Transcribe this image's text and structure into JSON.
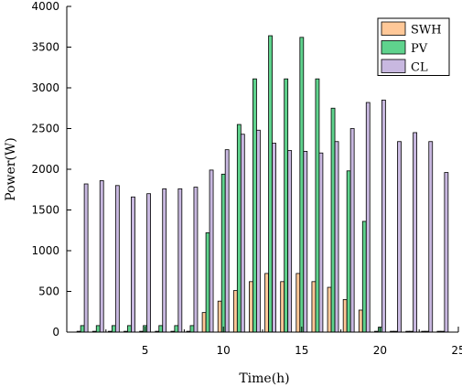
{
  "chart_data": {
    "type": "bar",
    "title": "",
    "xlabel": "Time(h)",
    "ylabel": "Power(W)",
    "xlim": [
      0,
      25
    ],
    "ylim": [
      0,
      4000
    ],
    "xticks": [
      5,
      10,
      15,
      20,
      25
    ],
    "yticks": [
      0,
      500,
      1000,
      1500,
      2000,
      2500,
      3000,
      3500,
      4000
    ],
    "grid": false,
    "legend_position": "top-right",
    "categories": [
      1,
      2,
      3,
      4,
      5,
      6,
      7,
      8,
      9,
      10,
      11,
      12,
      13,
      14,
      15,
      16,
      17,
      18,
      19,
      20,
      21,
      22,
      23,
      24
    ],
    "series": [
      {
        "name": "SWH",
        "color": "#FFC898",
        "values": [
          10,
          10,
          10,
          10,
          10,
          10,
          10,
          10,
          240,
          380,
          510,
          620,
          720,
          620,
          720,
          620,
          550,
          400,
          270,
          10,
          10,
          10,
          10,
          10
        ]
      },
      {
        "name": "PV",
        "color": "#5FD38D",
        "values": [
          80,
          80,
          80,
          80,
          80,
          80,
          80,
          80,
          1220,
          1940,
          2550,
          3110,
          3640,
          3110,
          3620,
          3110,
          2750,
          1980,
          1360,
          60,
          10,
          10,
          10,
          10
        ]
      },
      {
        "name": "CL",
        "color": "#C8B8E0",
        "values": [
          1820,
          1860,
          1800,
          1660,
          1700,
          1760,
          1760,
          1780,
          1990,
          2240,
          2430,
          2480,
          2320,
          2230,
          2220,
          2200,
          2340,
          2500,
          2820,
          2850,
          2340,
          2450,
          2340,
          1960
        ]
      }
    ]
  }
}
